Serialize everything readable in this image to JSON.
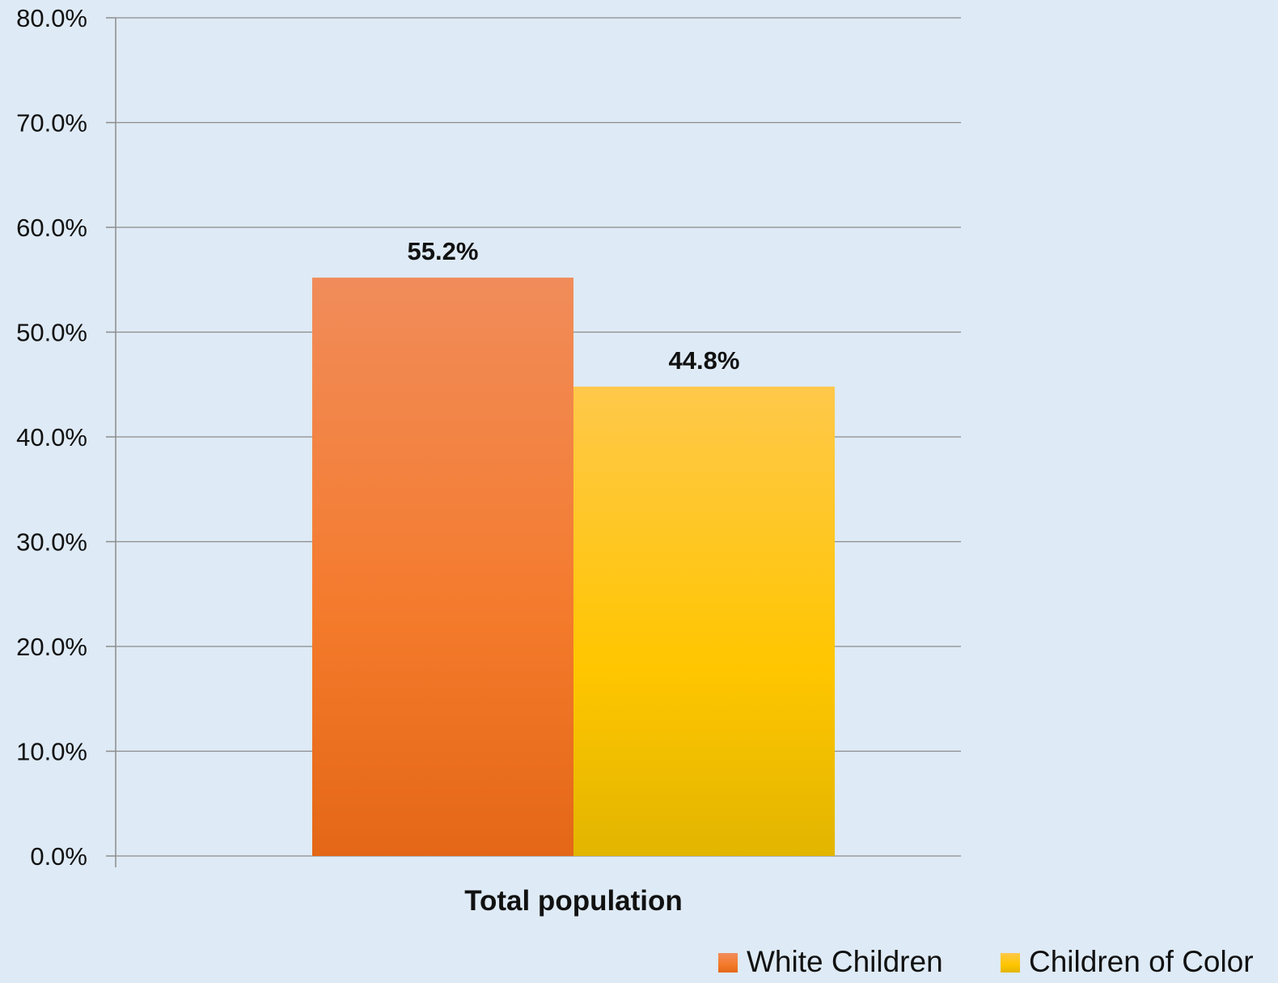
{
  "chart_data": {
    "type": "bar",
    "categories": [
      "Total population"
    ],
    "series": [
      {
        "name": "White Children",
        "values": [
          55.2
        ],
        "color_top": "#F18C5A",
        "color_mid": "#F47A2B",
        "color_bottom": "#E36716"
      },
      {
        "name": "Children of Color",
        "values": [
          44.8
        ],
        "color_top": "#FFC84A",
        "color_mid": "#FFC600",
        "color_bottom": "#E2B500"
      }
    ],
    "data_labels": [
      "55.2%",
      "44.8%"
    ],
    "value_format": "percent_1dp",
    "ylim": [
      0,
      80
    ],
    "y_ticks": [
      0,
      10,
      20,
      30,
      40,
      50,
      60,
      70,
      80
    ],
    "y_tick_labels": [
      "0.0%",
      "10.0%",
      "20.0%",
      "30.0%",
      "40.0%",
      "50.0%",
      "60.0%",
      "70.0%",
      "80.0%"
    ],
    "grid": true,
    "legend_position": "bottom-right",
    "background": "#DEEAF5"
  }
}
